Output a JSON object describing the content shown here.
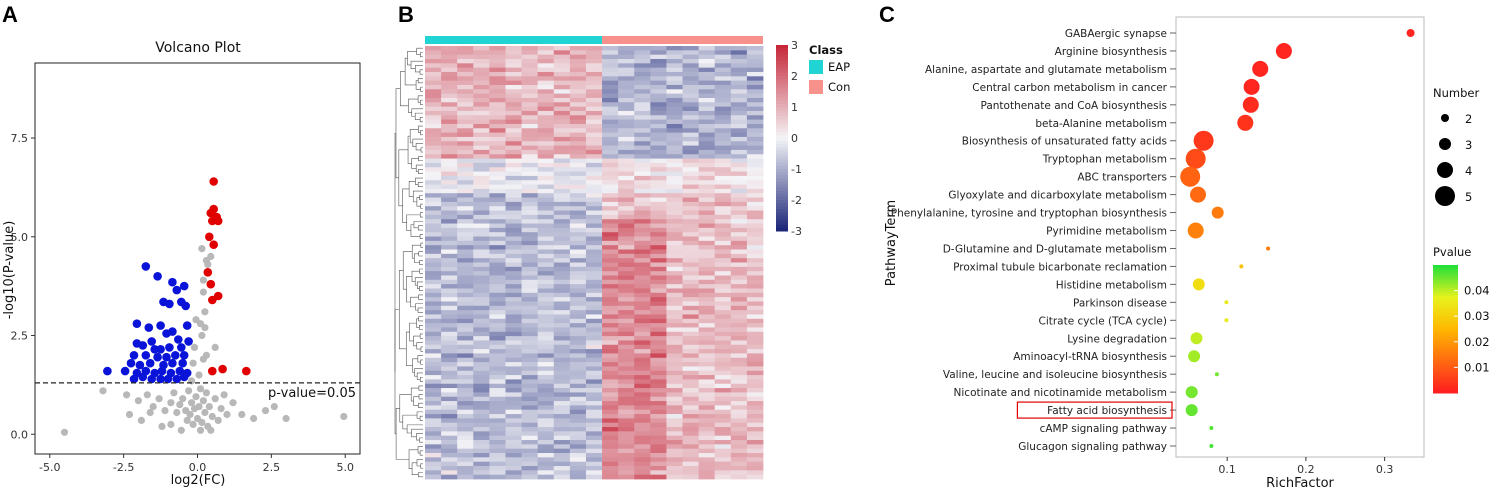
{
  "panels": {
    "a": "A",
    "b": "B",
    "c": "C"
  },
  "chart_data": [
    {
      "type": "scatter",
      "title": "Volcano Plot",
      "xlabel": "log2(FC)",
      "ylabel": "-log10(P-value)",
      "xlim": [
        -5.5,
        5.5
      ],
      "ylim": [
        -0.5,
        9.4
      ],
      "xticks": [
        -5.0,
        -2.5,
        0.0,
        2.5,
        5.0
      ],
      "xtick_labels": [
        "-5.0",
        "-2.5",
        "0.0",
        "2.5",
        "5.0"
      ],
      "yticks": [
        0.0,
        2.5,
        5.0,
        7.5
      ],
      "ytick_labels": [
        "0.0",
        "2.5",
        "5.0",
        "7.5"
      ],
      "threshold": {
        "y": 1.3,
        "label": "p-value=0.05"
      },
      "colors": {
        "down": "#0a14d8",
        "up": "#e00000",
        "ns": "#b8b8b8"
      },
      "series": [
        {
          "name": "up",
          "points": [
            [
              0.55,
              6.4
            ],
            [
              0.55,
              5.7
            ],
            [
              0.45,
              5.6
            ],
            [
              0.65,
              5.5
            ],
            [
              0.5,
              5.4
            ],
            [
              0.7,
              5.4
            ],
            [
              0.4,
              5.0
            ],
            [
              0.55,
              4.8
            ],
            [
              0.35,
              4.1
            ],
            [
              0.45,
              3.8
            ],
            [
              0.7,
              3.5
            ],
            [
              0.5,
              3.4
            ],
            [
              0.5,
              1.6
            ],
            [
              1.65,
              1.6
            ],
            [
              0.85,
              1.65
            ]
          ]
        },
        {
          "name": "down",
          "points": [
            [
              -1.75,
              4.25
            ],
            [
              -1.35,
              4.0
            ],
            [
              -0.85,
              3.85
            ],
            [
              -0.7,
              3.65
            ],
            [
              -0.45,
              3.75
            ],
            [
              -0.55,
              3.35
            ],
            [
              -1.15,
              3.35
            ],
            [
              -0.4,
              3.25
            ],
            [
              -0.95,
              3.3
            ],
            [
              -2.05,
              2.8
            ],
            [
              -1.65,
              2.7
            ],
            [
              -1.25,
              2.75
            ],
            [
              -0.35,
              2.75
            ],
            [
              -0.85,
              2.6
            ],
            [
              -1.05,
              2.55
            ],
            [
              -2.05,
              2.3
            ],
            [
              -1.85,
              2.25
            ],
            [
              -1.55,
              2.35
            ],
            [
              -0.65,
              2.4
            ],
            [
              -0.3,
              2.35
            ],
            [
              -1.45,
              2.15
            ],
            [
              -1.25,
              2.15
            ],
            [
              -0.95,
              2.2
            ],
            [
              -0.55,
              2.2
            ],
            [
              -2.15,
              2.0
            ],
            [
              -1.75,
              2.0
            ],
            [
              -1.35,
              1.95
            ],
            [
              -1.05,
              1.95
            ],
            [
              -0.75,
              2.0
            ],
            [
              -0.45,
              2.0
            ],
            [
              -2.25,
              1.8
            ],
            [
              -1.95,
              1.75
            ],
            [
              -1.6,
              1.8
            ],
            [
              -1.15,
              1.75
            ],
            [
              -0.85,
              1.8
            ],
            [
              -0.5,
              1.8
            ],
            [
              -3.05,
              1.6
            ],
            [
              -2.45,
              1.6
            ],
            [
              -2.05,
              1.55
            ],
            [
              -1.75,
              1.6
            ],
            [
              -1.45,
              1.55
            ],
            [
              -1.2,
              1.6
            ],
            [
              -0.9,
              1.55
            ],
            [
              -0.6,
              1.6
            ],
            [
              -0.35,
              1.55
            ],
            [
              -2.15,
              1.4
            ],
            [
              -1.85,
              1.45
            ],
            [
              -1.55,
              1.4
            ],
            [
              -1.25,
              1.4
            ],
            [
              -1.0,
              1.4
            ],
            [
              -0.7,
              1.4
            ],
            [
              -0.45,
              1.45
            ]
          ]
        },
        {
          "name": "ns",
          "points": [
            [
              -3.2,
              1.1
            ],
            [
              -2.4,
              1.0
            ],
            [
              -2.0,
              0.85
            ],
            [
              -1.7,
              1.0
            ],
            [
              -1.5,
              0.7
            ],
            [
              -1.3,
              0.9
            ],
            [
              -1.1,
              0.6
            ],
            [
              -0.9,
              0.8
            ],
            [
              -0.8,
              1.05
            ],
            [
              -0.7,
              0.55
            ],
            [
              -0.6,
              0.75
            ],
            [
              -0.5,
              0.9
            ],
            [
              -0.4,
              0.6
            ],
            [
              -0.35,
              0.35
            ],
            [
              -0.3,
              1.1
            ],
            [
              -0.25,
              0.5
            ],
            [
              -0.2,
              0.8
            ],
            [
              -0.15,
              0.25
            ],
            [
              -0.1,
              0.65
            ],
            [
              -0.05,
              0.95
            ],
            [
              0.0,
              0.4
            ],
            [
              0.05,
              0.7
            ],
            [
              0.1,
              1.15
            ],
            [
              0.15,
              0.3
            ],
            [
              0.2,
              0.85
            ],
            [
              0.25,
              0.55
            ],
            [
              0.3,
              1.05
            ],
            [
              0.35,
              0.2
            ],
            [
              0.4,
              0.7
            ],
            [
              0.5,
              0.45
            ],
            [
              0.6,
              0.9
            ],
            [
              0.7,
              0.35
            ],
            [
              0.8,
              0.65
            ],
            [
              0.9,
              1.0
            ],
            [
              1.0,
              0.5
            ],
            [
              1.2,
              0.8
            ],
            [
              1.5,
              0.5
            ],
            [
              1.9,
              0.4
            ],
            [
              -2.3,
              0.5
            ],
            [
              -1.9,
              0.35
            ],
            [
              -1.2,
              0.2
            ],
            [
              -0.55,
              0.1
            ],
            [
              0.1,
              0.1
            ],
            [
              0.45,
              0.1
            ],
            [
              -0.9,
              0.25
            ],
            [
              -1.6,
              0.55
            ],
            [
              2.6,
              0.7
            ],
            [
              2.3,
              0.6
            ],
            [
              3.0,
              0.4
            ],
            [
              4.95,
              0.45
            ],
            [
              -4.5,
              0.05
            ],
            [
              -0.15,
              1.8
            ],
            [
              0.2,
              1.9
            ],
            [
              -0.1,
              2.2
            ],
            [
              0.15,
              2.5
            ],
            [
              0.1,
              2.8
            ],
            [
              0.25,
              3.1
            ],
            [
              0.2,
              3.6
            ],
            [
              0.3,
              4.4
            ],
            [
              0.15,
              4.7
            ],
            [
              0.05,
              1.5
            ],
            [
              -0.2,
              1.35
            ],
            [
              0.3,
              2.0
            ],
            [
              0.6,
              2.2
            ],
            [
              0.25,
              2.7
            ],
            [
              -0.05,
              2.9
            ],
            [
              0.35,
              4.3
            ],
            [
              0.45,
              4.5
            ],
            [
              0.2,
              3.9
            ]
          ]
        }
      ]
    },
    {
      "type": "heatmap",
      "legend_title": "Class",
      "groups": [
        {
          "name": "EAP",
          "color": "#21d4d4",
          "count": 11
        },
        {
          "name": "Con",
          "color": "#f6918c",
          "count": 10
        }
      ],
      "n_rows": 100,
      "color_scale": {
        "min": -3,
        "max": 3,
        "low": "#1d2779",
        "mid": "#f4f4f7",
        "high": "#c6283a"
      },
      "scale_ticks": [
        3,
        2,
        1,
        0,
        -1,
        -2,
        -3
      ],
      "scale_tick_labels": [
        "3",
        "2",
        "1",
        "0",
        "-1",
        "-2",
        "-3"
      ]
    },
    {
      "type": "scatter",
      "xlabel": "RichFactor",
      "ylabel": "PathwayTerm",
      "xlim": [
        0.035,
        0.35
      ],
      "xticks": [
        0.1,
        0.2,
        0.3
      ],
      "xtick_labels": [
        "0.1",
        "0.2",
        "0.3"
      ],
      "terms": [
        {
          "name": "GABAergic synapse",
          "rich": 0.333,
          "number": 2,
          "p": 0.001
        },
        {
          "name": "Arginine biosynthesis",
          "rich": 0.172,
          "number": 4,
          "p": 0.001
        },
        {
          "name": "Alanine, aspartate and glutamate metabolism",
          "rich": 0.142,
          "number": 4,
          "p": 0.001
        },
        {
          "name": "Central carbon metabolism in cancer",
          "rich": 0.131,
          "number": 4,
          "p": 0.001
        },
        {
          "name": "Pantothenate and CoA biosynthesis",
          "rich": 0.13,
          "number": 4,
          "p": 0.002
        },
        {
          "name": "beta-Alanine metabolism",
          "rich": 0.123,
          "number": 4,
          "p": 0.003
        },
        {
          "name": "Biosynthesis of unsaturated fatty acids",
          "rich": 0.07,
          "number": 5,
          "p": 0.004
        },
        {
          "name": "Tryptophan metabolism",
          "rich": 0.06,
          "number": 5,
          "p": 0.007
        },
        {
          "name": "ABC transporters",
          "rich": 0.053,
          "number": 5,
          "p": 0.011
        },
        {
          "name": "Glyoxylate and dicarboxylate metabolism",
          "rich": 0.063,
          "number": 4,
          "p": 0.012
        },
        {
          "name": "Phenylalanine, tyrosine and tryptophan biosynthesis",
          "rich": 0.088,
          "number": 3,
          "p": 0.015
        },
        {
          "name": "Pyrimidine metabolism",
          "rich": 0.06,
          "number": 4,
          "p": 0.016
        },
        {
          "name": "D-Glutamine and D-glutamate metabolism",
          "rich": 0.152,
          "number": 1,
          "p": 0.015
        },
        {
          "name": "Proximal tubule bicarbonate reclamation",
          "rich": 0.118,
          "number": 1,
          "p": 0.027
        },
        {
          "name": "Histidine metabolism",
          "rich": 0.064,
          "number": 3,
          "p": 0.033
        },
        {
          "name": "Parkinson disease",
          "rich": 0.099,
          "number": 1,
          "p": 0.036
        },
        {
          "name": "Citrate cycle (TCA cycle)",
          "rich": 0.099,
          "number": 1,
          "p": 0.036
        },
        {
          "name": "Lysine degradation",
          "rich": 0.061,
          "number": 3,
          "p": 0.04
        },
        {
          "name": "Aminoacyl-tRNA biosynthesis",
          "rich": 0.058,
          "number": 3,
          "p": 0.042
        },
        {
          "name": "Valine, leucine and isoleucine biosynthesis",
          "rich": 0.087,
          "number": 1,
          "p": 0.045
        },
        {
          "name": "Nicotinate and nicotinamide metabolism",
          "rich": 0.055,
          "number": 3,
          "p": 0.045
        },
        {
          "name": "Fatty acid biosynthesis",
          "rich": 0.055,
          "number": 3,
          "p": 0.046,
          "highlight": true
        },
        {
          "name": "cAMP signaling pathway",
          "rich": 0.08,
          "number": 1,
          "p": 0.047
        },
        {
          "name": "Glucagon signaling pathway",
          "rich": 0.08,
          "number": 1,
          "p": 0.048
        }
      ],
      "size_legend": {
        "title": "Number",
        "values": [
          2,
          3,
          4,
          5
        ],
        "labels": [
          "2",
          "3",
          "4",
          "5"
        ]
      },
      "color_legend": {
        "title": "Pvalue",
        "min": 0.0,
        "max": 0.05,
        "ticks": [
          0.04,
          0.03,
          0.02,
          0.01
        ],
        "tick_labels": [
          "0.04",
          "0.03",
          "0.02",
          "0.01"
        ]
      },
      "highlight_color": "#e00000"
    }
  ]
}
